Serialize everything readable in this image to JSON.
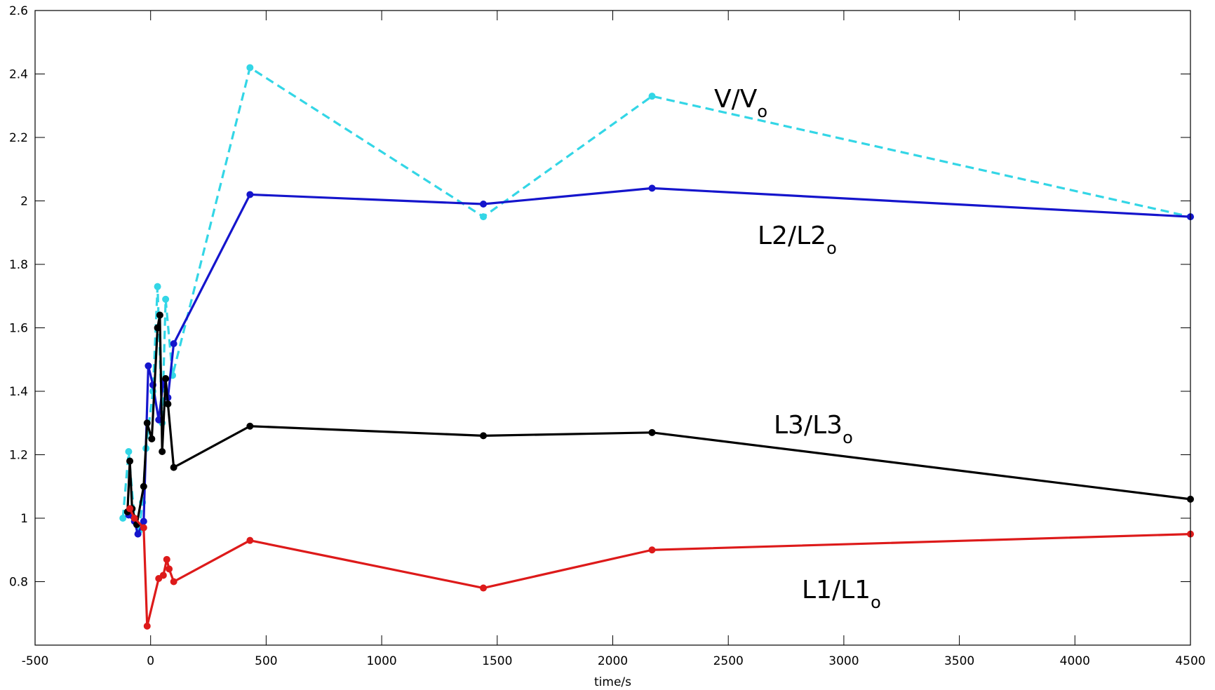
{
  "chart_data": {
    "type": "line",
    "title": "",
    "xlabel": "time/s",
    "ylabel": "",
    "xlim": [
      -500,
      4500
    ],
    "ylim": [
      0.6,
      2.6
    ],
    "xticks": [
      -500,
      0,
      500,
      1000,
      1500,
      2000,
      2500,
      3000,
      3500,
      4000,
      4500
    ],
    "yticks": [
      0.8,
      1,
      1.2,
      1.4,
      1.6,
      1.8,
      2,
      2.2,
      2.4,
      2.6
    ],
    "xtick_labels": [
      "-500",
      "0",
      "500",
      "1000",
      "1500",
      "2000",
      "2500",
      "3000",
      "3500",
      "4000",
      "4500"
    ],
    "ytick_labels": [
      "0.8",
      "1",
      "1.2",
      "1.4",
      "1.6",
      "1.8",
      "2",
      "2.2",
      "2.4",
      "2.6"
    ],
    "grid": false,
    "legend": "none",
    "series": [
      {
        "name": "V/Vo",
        "label_main": "V/V",
        "label_sub": "o",
        "color": "#33d6e6",
        "style": "dashed",
        "points": [
          [
            -120,
            1.0
          ],
          [
            -95,
            1.21
          ],
          [
            -70,
            1.0
          ],
          [
            -50,
            0.96
          ],
          [
            -35,
            1.05
          ],
          [
            -20,
            1.22
          ],
          [
            10,
            1.4
          ],
          [
            30,
            1.73
          ],
          [
            50,
            1.3
          ],
          [
            65,
            1.69
          ],
          [
            95,
            1.45
          ],
          [
            430,
            2.42
          ],
          [
            1440,
            1.95
          ],
          [
            2170,
            2.33
          ],
          [
            4500,
            1.95
          ]
        ]
      },
      {
        "name": "L2/L2o",
        "label_main": "L2/L2",
        "label_sub": "o",
        "color": "#1515cc",
        "style": "solid",
        "points": [
          [
            -95,
            1.01
          ],
          [
            -70,
            0.99
          ],
          [
            -55,
            0.95
          ],
          [
            -30,
            0.99
          ],
          [
            -10,
            1.48
          ],
          [
            10,
            1.42
          ],
          [
            35,
            1.31
          ],
          [
            55,
            1.43
          ],
          [
            75,
            1.38
          ],
          [
            100,
            1.55
          ],
          [
            430,
            2.02
          ],
          [
            1440,
            1.99
          ],
          [
            2170,
            2.04
          ],
          [
            4500,
            1.95
          ]
        ]
      },
      {
        "name": "L3/L3o",
        "label_main": "L3/L3",
        "label_sub": "o",
        "color": "#000000",
        "style": "solid",
        "points": [
          [
            -100,
            1.02
          ],
          [
            -90,
            1.18
          ],
          [
            -80,
            1.03
          ],
          [
            -60,
            0.98
          ],
          [
            -30,
            1.1
          ],
          [
            -15,
            1.3
          ],
          [
            5,
            1.25
          ],
          [
            30,
            1.6
          ],
          [
            40,
            1.64
          ],
          [
            50,
            1.21
          ],
          [
            65,
            1.44
          ],
          [
            75,
            1.36
          ],
          [
            100,
            1.16
          ],
          [
            430,
            1.29
          ],
          [
            1440,
            1.26
          ],
          [
            2170,
            1.27
          ],
          [
            4500,
            1.06
          ]
        ]
      },
      {
        "name": "L1/L1o",
        "label_main": "L1/L1",
        "label_sub": "o",
        "color": "#dd1a1a",
        "style": "solid",
        "points": [
          [
            -90,
            1.03
          ],
          [
            -70,
            1.0
          ],
          [
            -30,
            0.97
          ],
          [
            -15,
            0.66
          ],
          [
            35,
            0.81
          ],
          [
            55,
            0.82
          ],
          [
            70,
            0.87
          ],
          [
            80,
            0.84
          ],
          [
            100,
            0.8
          ],
          [
            430,
            0.93
          ],
          [
            1440,
            0.78
          ],
          [
            2170,
            0.9
          ],
          [
            4500,
            0.95
          ]
        ]
      }
    ]
  }
}
